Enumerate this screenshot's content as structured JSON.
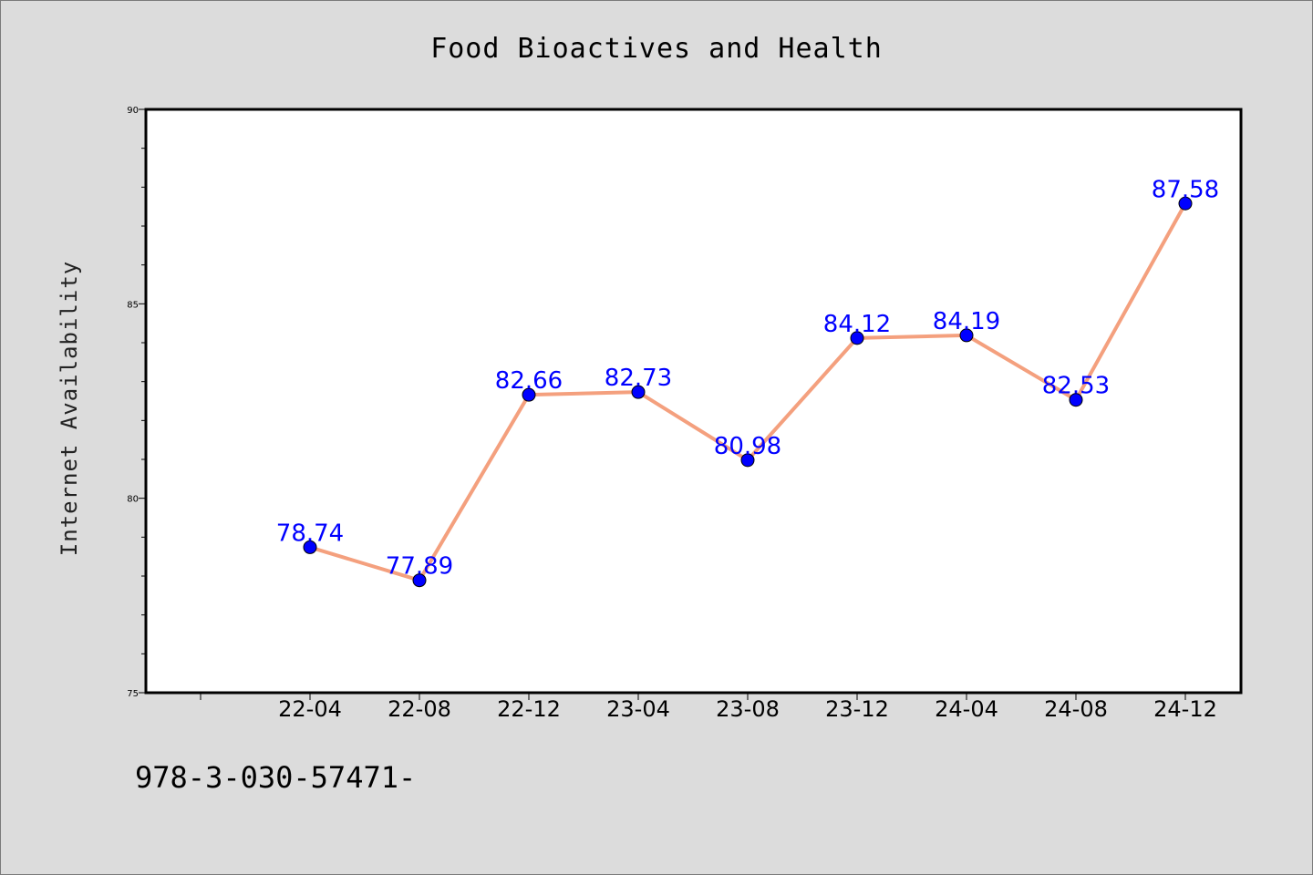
{
  "chart_data": {
    "type": "line",
    "title": "Food Bioactives and Health",
    "xlabel": "",
    "ylabel": "Internet Availability",
    "categories": [
      "22-04",
      "22-08",
      "22-12",
      "23-04",
      "23-08",
      "23-12",
      "24-04",
      "24-08",
      "24-12"
    ],
    "values": [
      78.74,
      77.89,
      82.66,
      82.73,
      80.98,
      84.12,
      84.19,
      82.53,
      87.58
    ],
    "data_labels": [
      "78.74",
      "77.89",
      "82.66",
      "82.73",
      "80.98",
      "84.12",
      "84.19",
      "82.53",
      "87.58"
    ],
    "ylim": [
      75,
      90
    ],
    "yticks": [
      75,
      80,
      85,
      90
    ],
    "ytick_labels": [
      "75",
      "80",
      "85",
      "90"
    ],
    "grid": false,
    "legend": "none",
    "line_color": "#f4a07e",
    "marker_color": "#0000ff",
    "label_color": "#0000ff"
  },
  "footer": {
    "text": "978-3-030-57471-"
  }
}
